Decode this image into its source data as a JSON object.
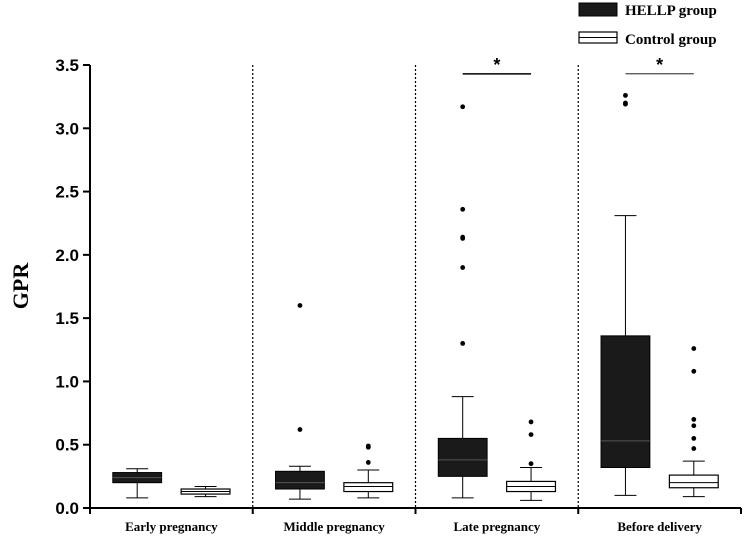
{
  "chart_data": {
    "type": "box",
    "ylabel": "GPR",
    "xlabel": "",
    "ylim": [
      0,
      3.5
    ],
    "yticks": [
      0.0,
      0.5,
      1.0,
      1.5,
      2.0,
      2.5,
      3.0,
      3.5
    ],
    "ytick_labels": [
      "0.0",
      "0.5",
      "1.0",
      "1.5",
      "2.0",
      "2.5",
      "3.0",
      "3.5"
    ],
    "categories": [
      "Early pregnancy",
      "Middle pregnancy",
      "Late pregnancy",
      "Before delivery"
    ],
    "legend": {
      "position": "top-right"
    },
    "series": [
      {
        "name": "HELLP group",
        "color": "#1a1a1a",
        "boxes": [
          {
            "whisker_low": 0.08,
            "q1": 0.2,
            "median": 0.24,
            "q3": 0.28,
            "whisker_high": 0.31,
            "outliers": []
          },
          {
            "whisker_low": 0.07,
            "q1": 0.15,
            "median": 0.2,
            "q3": 0.29,
            "whisker_high": 0.33,
            "outliers": [
              0.62,
              1.6
            ]
          },
          {
            "whisker_low": 0.08,
            "q1": 0.25,
            "median": 0.38,
            "q3": 0.55,
            "whisker_high": 0.88,
            "outliers": [
              1.3,
              1.9,
              2.13,
              2.14,
              2.36,
              3.17
            ]
          },
          {
            "whisker_low": 0.1,
            "q1": 0.32,
            "median": 0.53,
            "q3": 1.36,
            "whisker_high": 2.31,
            "outliers": [
              3.19,
              3.2,
              3.26
            ]
          }
        ]
      },
      {
        "name": "Control group",
        "color": "#ffffff",
        "boxes": [
          {
            "whisker_low": 0.09,
            "q1": 0.11,
            "median": 0.13,
            "q3": 0.15,
            "whisker_high": 0.17,
            "outliers": []
          },
          {
            "whisker_low": 0.08,
            "q1": 0.13,
            "median": 0.17,
            "q3": 0.2,
            "whisker_high": 0.3,
            "outliers": [
              0.36,
              0.48,
              0.49
            ]
          },
          {
            "whisker_low": 0.06,
            "q1": 0.13,
            "median": 0.17,
            "q3": 0.21,
            "whisker_high": 0.32,
            "outliers": [
              0.35,
              0.58,
              0.68
            ]
          },
          {
            "whisker_low": 0.09,
            "q1": 0.16,
            "median": 0.2,
            "q3": 0.26,
            "whisker_high": 0.37,
            "outliers": [
              0.47,
              0.55,
              0.65,
              0.7,
              1.08,
              1.26
            ]
          }
        ]
      }
    ],
    "annotations": [
      {
        "text": "*",
        "category": "Late pregnancy",
        "value": 3.43
      },
      {
        "text": "*",
        "category": "Before delivery",
        "value": 3.43
      }
    ]
  }
}
